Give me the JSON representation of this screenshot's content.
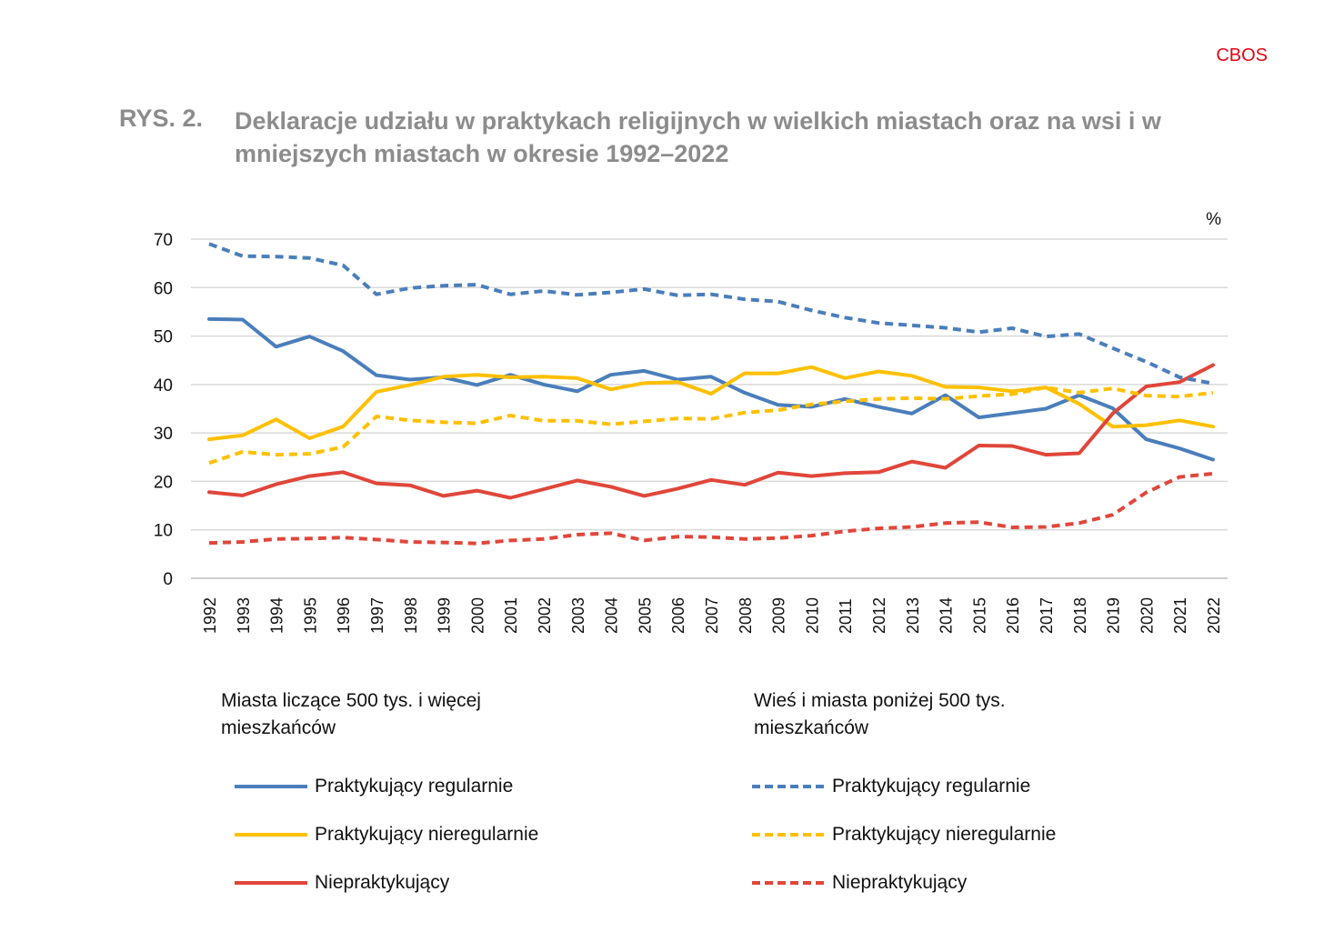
{
  "brand": "CBOS",
  "figure": {
    "label": "RYS. 2.",
    "title": "Deklaracje udziału w praktykach religijnych w wielkich miastach oraz na wsi i w mniejszych miastach w okresie 1992–2022"
  },
  "legend": {
    "group_big_city": "Miasta liczące 500 tys. i więcej mieszkańców",
    "group_rural": "Wieś i miasta poniżej 500 tys. mieszkańców",
    "big_regular": "Praktykujący regularnie",
    "big_irregular": "Praktykujący nieregularnie",
    "big_nonpracticing": "Niepraktykujący",
    "rural_regular": "Praktykujący regularnie",
    "rural_irregular": "Praktykujący nieregularnie",
    "rural_nonpracticing": "Niepraktykujący"
  },
  "colors": {
    "regular": "#4a7ebb",
    "irregular": "#ffc000",
    "nonpracticing": "#e0463a",
    "grid": "#d9d9d9",
    "brand": "#e30613"
  },
  "chart_data": {
    "type": "line",
    "unit_label": "%",
    "ylim": [
      0,
      70
    ],
    "yticks": [
      0,
      10,
      20,
      30,
      40,
      50,
      60,
      70
    ],
    "grid": true,
    "x": [
      "1992",
      "1993",
      "1994",
      "1995",
      "1996",
      "1997",
      "1998",
      "1999",
      "2000",
      "2001",
      "2002",
      "2003",
      "2004",
      "2005",
      "2006",
      "2007",
      "2008",
      "2009",
      "2010",
      "2011",
      "2012",
      "2013",
      "2014",
      "2015",
      "2016",
      "2017",
      "2018",
      "2019",
      "2020",
      "2021",
      "2022"
    ],
    "series": [
      {
        "name": "Praktykujący regularnie",
        "group": "Miasta liczące 500 tys. i więcej mieszkańców",
        "color": "#4a7ebb",
        "dash": "solid",
        "values": [
          53.5,
          53.4,
          47.8,
          49.9,
          46.9,
          41.9,
          41.0,
          41.5,
          39.9,
          42.0,
          40.0,
          38.6,
          42.0,
          42.8,
          41.0,
          41.6,
          38.3,
          35.8,
          35.4,
          37.0,
          35.4,
          34.0,
          37.8,
          33.2,
          34.1,
          35.0,
          37.8,
          35.1,
          28.7,
          26.8,
          24.5
        ]
      },
      {
        "name": "Praktykujący nieregularnie",
        "group": "Miasta liczące 500 tys. i więcej mieszkańców",
        "color": "#ffc000",
        "dash": "solid",
        "values": [
          28.7,
          29.5,
          32.8,
          28.9,
          31.3,
          38.5,
          39.9,
          41.6,
          42.0,
          41.5,
          41.6,
          41.3,
          39.0,
          40.3,
          40.5,
          38.1,
          42.3,
          42.3,
          43.6,
          41.3,
          42.7,
          41.8,
          39.5,
          39.4,
          38.6,
          39.4,
          36.0,
          31.3,
          31.6,
          32.6,
          31.3
        ]
      },
      {
        "name": "Niepraktykujący",
        "group": "Miasta liczące 500 tys. i więcej mieszkańców",
        "color": "#e0463a",
        "dash": "solid",
        "values": [
          17.8,
          17.1,
          19.4,
          21.1,
          21.9,
          19.6,
          19.2,
          17.0,
          18.1,
          16.6,
          18.4,
          20.2,
          18.9,
          17.0,
          18.5,
          20.3,
          19.3,
          21.8,
          21.1,
          21.7,
          21.9,
          24.1,
          22.8,
          27.4,
          27.3,
          25.5,
          25.8,
          34.0,
          39.6,
          40.5,
          44.0
        ]
      },
      {
        "name": "Praktykujący regularnie",
        "group": "Wieś i miasta poniżej 500 tys. mieszkańców",
        "color": "#4a7ebb",
        "dash": "dashed",
        "values": [
          69.0,
          66.5,
          66.4,
          66.1,
          64.6,
          58.6,
          59.9,
          60.4,
          60.6,
          58.6,
          59.3,
          58.5,
          59.0,
          59.7,
          58.4,
          58.6,
          57.6,
          57.1,
          55.3,
          53.8,
          52.7,
          52.2,
          51.7,
          50.8,
          51.6,
          49.9,
          50.4,
          47.5,
          44.7,
          41.5,
          40.2
        ]
      },
      {
        "name": "Praktykujący nieregularnie",
        "group": "Wieś i miasta poniżej 500 tys. mieszkańców",
        "color": "#ffc000",
        "dash": "dashed",
        "values": [
          23.8,
          26.1,
          25.5,
          25.7,
          27.1,
          33.4,
          32.6,
          32.2,
          32.0,
          33.6,
          32.5,
          32.5,
          31.8,
          32.4,
          33.0,
          32.9,
          34.2,
          34.7,
          35.9,
          36.5,
          37.0,
          37.2,
          37.0,
          37.6,
          38.0,
          39.4,
          38.3,
          39.2,
          37.7,
          37.5,
          38.3
        ]
      },
      {
        "name": "Niepraktykujący",
        "group": "Wieś i miasta poniżej 500 tys. mieszkańców",
        "color": "#e0463a",
        "dash": "dashed",
        "values": [
          7.3,
          7.5,
          8.1,
          8.2,
          8.4,
          8.0,
          7.5,
          7.4,
          7.2,
          7.8,
          8.1,
          9.0,
          9.3,
          7.8,
          8.6,
          8.5,
          8.1,
          8.3,
          8.8,
          9.7,
          10.3,
          10.6,
          11.4,
          11.6,
          10.5,
          10.6,
          11.4,
          13.1,
          17.7,
          20.9,
          21.6
        ]
      }
    ]
  }
}
